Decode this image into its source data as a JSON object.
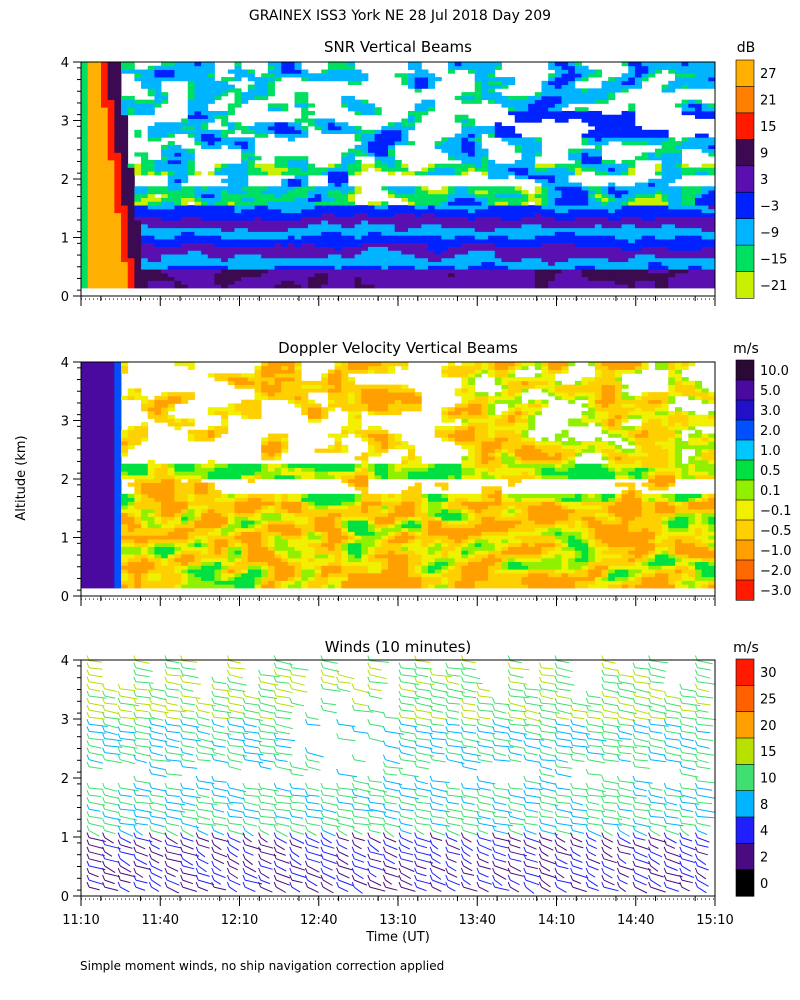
{
  "figure": {
    "title": "GRAINEX ISS3 York NE  28 Jul 2018 Day 209",
    "y_axis_label": "Altitude (km)",
    "x_axis_label": "Time (UT)",
    "footnote": "Simple moment winds, no ship navigation correction applied"
  },
  "chart_data": [
    {
      "type": "heatmap",
      "title": "SNR Vertical Beams",
      "colorbar_unit": "dB",
      "colorbar_ticks": [
        "27",
        "21",
        "15",
        "9",
        "3",
        "−3",
        "−9",
        "−15",
        "−21"
      ],
      "colors": [
        "#ffb000",
        "#ff8000",
        "#ff1a00",
        "#3c0a50",
        "#5a10b0",
        "#0022ff",
        "#00b4ff",
        "#00e060",
        "#c8f000"
      ],
      "x_ticks": [
        "11:10",
        "11:40",
        "12:10",
        "12:40",
        "13:10",
        "13:40",
        "14:10",
        "14:40",
        "15:10"
      ],
      "y_ticks": [
        "0",
        "1",
        "2",
        "3",
        "4"
      ],
      "xlim": [
        "11:10",
        "15:10"
      ],
      "ylim": [
        0,
        4
      ],
      "y_unit": "km"
    },
    {
      "type": "heatmap",
      "title": "Doppler Velocity Vertical Beams",
      "colorbar_unit": "m/s",
      "colorbar_ticks": [
        "10.0",
        "5.0",
        "3.0",
        "2.0",
        "1.0",
        "0.5",
        "0.1",
        "−0.1",
        "−0.5",
        "−1.0",
        "−2.0",
        "−3.0"
      ],
      "colors": [
        "#2a0a35",
        "#4a0aa0",
        "#2010c8",
        "#0050ff",
        "#00c8ff",
        "#00e040",
        "#90f000",
        "#f0f000",
        "#ffd000",
        "#ffa000",
        "#ff6a00",
        "#ff1a00"
      ],
      "x_ticks": [
        "11:10",
        "11:40",
        "12:10",
        "12:40",
        "13:10",
        "13:40",
        "14:10",
        "14:40",
        "15:10"
      ],
      "y_ticks": [
        "0",
        "1",
        "2",
        "3",
        "4"
      ],
      "xlim": [
        "11:10",
        "15:10"
      ],
      "ylim": [
        0,
        4
      ],
      "y_unit": "km"
    },
    {
      "type": "scatter",
      "title": "Winds (10 minutes)",
      "colorbar_unit": "m/s",
      "colorbar_ticks": [
        "30",
        "25",
        "20",
        "15",
        "10",
        "8",
        "4",
        "2",
        "0"
      ],
      "colors": [
        "#ff1a00",
        "#ff6000",
        "#ffa000",
        "#b8e000",
        "#40e070",
        "#00b4ff",
        "#2020ff",
        "#4a0a80",
        "#000000"
      ],
      "x_ticks": [
        "11:10",
        "11:40",
        "12:10",
        "12:40",
        "13:10",
        "13:40",
        "14:10",
        "14:40",
        "15:10"
      ],
      "y_ticks": [
        "0",
        "1",
        "2",
        "3",
        "4"
      ],
      "xlim": [
        "11:10",
        "15:10"
      ],
      "ylim": [
        0,
        4
      ],
      "y_unit": "km"
    }
  ]
}
